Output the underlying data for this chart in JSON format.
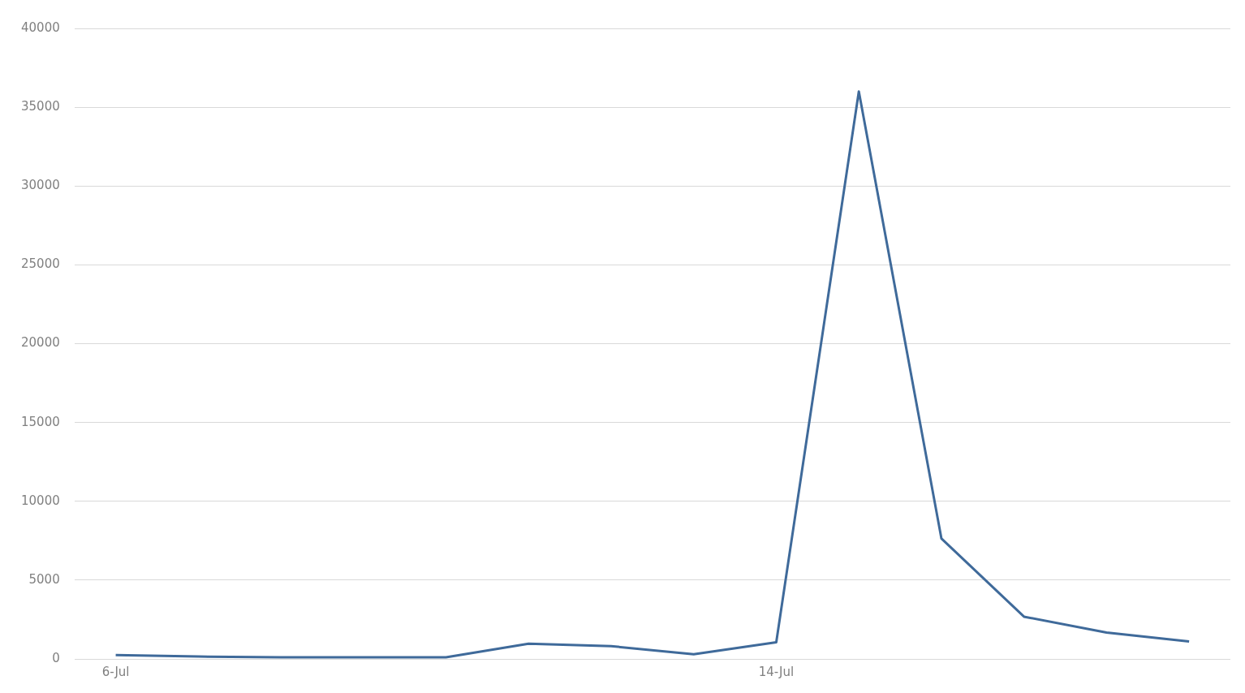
{
  "chart_data": {
    "type": "line",
    "categories": [
      "6-Jul",
      null,
      null,
      null,
      null,
      null,
      null,
      null,
      "14-Jul",
      null,
      null,
      null,
      null,
      null
    ],
    "series": [
      {
        "color": "#3f6a9a",
        "values": [
          250,
          150,
          100,
          100,
          100,
          960,
          810,
          300,
          1060,
          36000,
          7640,
          2680,
          1670,
          1110
        ]
      }
    ],
    "ylim": [
      0,
      40000
    ],
    "yticks": [
      0,
      5000,
      10000,
      15000,
      20000,
      25000,
      30000,
      35000,
      40000
    ],
    "grid": "y",
    "legend": false,
    "marker": "none",
    "line_style": "solid"
  }
}
